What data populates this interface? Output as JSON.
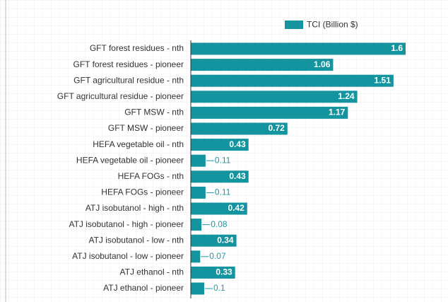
{
  "chart_data": {
    "type": "bar",
    "orientation": "horizontal",
    "categories": [
      "GFT forest residues - nth",
      "GFT forest residues - pioneer",
      "GFT agricultural residue - nth",
      "GFT agricultural residue - pioneer",
      "GFT MSW - nth",
      "GFT MSW - pioneer",
      "HEFA vegetable oil - nth",
      "HEFA vegetable oil - pioneer",
      "HEFA FOGs - nth",
      "HEFA FOGs - pioneer",
      "ATJ isobutanol - high - nth",
      "ATJ isobutanol - high - pioneer",
      "ATJ isobutanol - low - nth",
      "ATJ isobutanol - low - pioneer",
      "ATJ ethanol - nth",
      "ATJ ethanol - pioneer"
    ],
    "series": [
      {
        "name": "TCI (Billion $)",
        "color": "#13949f",
        "values": [
          1.6,
          1.06,
          1.51,
          1.24,
          1.17,
          0.72,
          0.43,
          0.11,
          0.43,
          0.11,
          0.42,
          0.08,
          0.34,
          0.07,
          0.33,
          0.1
        ]
      }
    ],
    "xlim": [
      0,
      1.8
    ],
    "legend": "top"
  }
}
